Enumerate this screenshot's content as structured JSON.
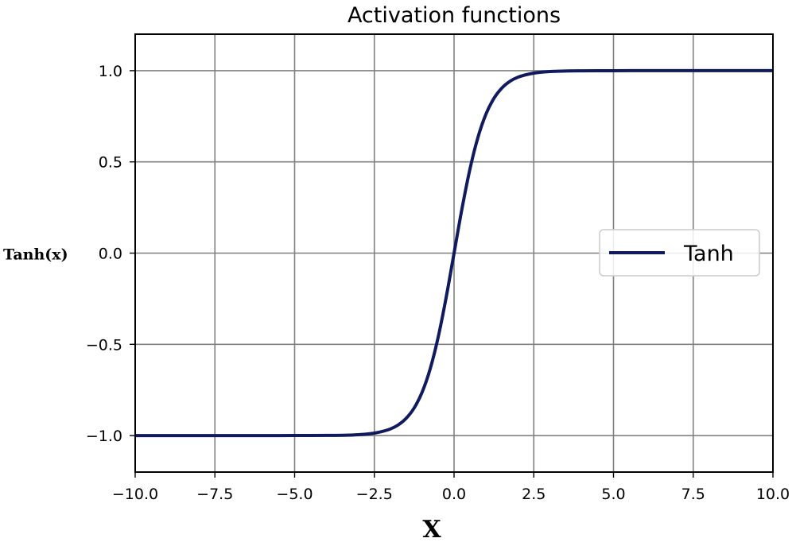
{
  "chart_data": {
    "type": "line",
    "title": "Activation functions",
    "xlabel": "X",
    "ylabel": "Tanh(x)",
    "xlim": [
      -10,
      10
    ],
    "ylim": [
      -1.2,
      1.2
    ],
    "x_ticks": [
      -10,
      -7.5,
      -5,
      -2.5,
      0,
      2.5,
      5,
      7.5,
      10
    ],
    "x_tick_labels": [
      "−10.0",
      "−7.5",
      "−5.0",
      "−2.5",
      "0.0",
      "2.5",
      "5.0",
      "7.5",
      "10.0"
    ],
    "y_ticks": [
      -1,
      -0.5,
      0,
      0.5,
      1
    ],
    "y_tick_labels": [
      "−1.0",
      "−0.5",
      "0.0",
      "0.5",
      "1.0"
    ],
    "grid": true,
    "legend_position": "center-right",
    "series": [
      {
        "name": "Tanh",
        "color": "#101a5c",
        "x": [
          -10,
          -8,
          -6,
          -5,
          -4,
          -3,
          -2.5,
          -2,
          -1.75,
          -1.5,
          -1.25,
          -1,
          -0.75,
          -0.5,
          -0.25,
          0,
          0.25,
          0.5,
          0.75,
          1,
          1.25,
          1.5,
          1.75,
          2,
          2.5,
          3,
          4,
          5,
          6,
          8,
          10
        ],
        "y": [
          -1.0,
          -1.0,
          -1.0,
          -0.9999,
          -0.9993,
          -0.9951,
          -0.9866,
          -0.964,
          -0.9414,
          -0.9051,
          -0.8483,
          -0.7616,
          -0.6351,
          -0.4621,
          -0.2449,
          0.0,
          0.2449,
          0.4621,
          0.6351,
          0.7616,
          0.8483,
          0.9051,
          0.9414,
          0.964,
          0.9866,
          0.9951,
          0.9993,
          0.9999,
          1.0,
          1.0,
          1.0
        ]
      }
    ]
  }
}
